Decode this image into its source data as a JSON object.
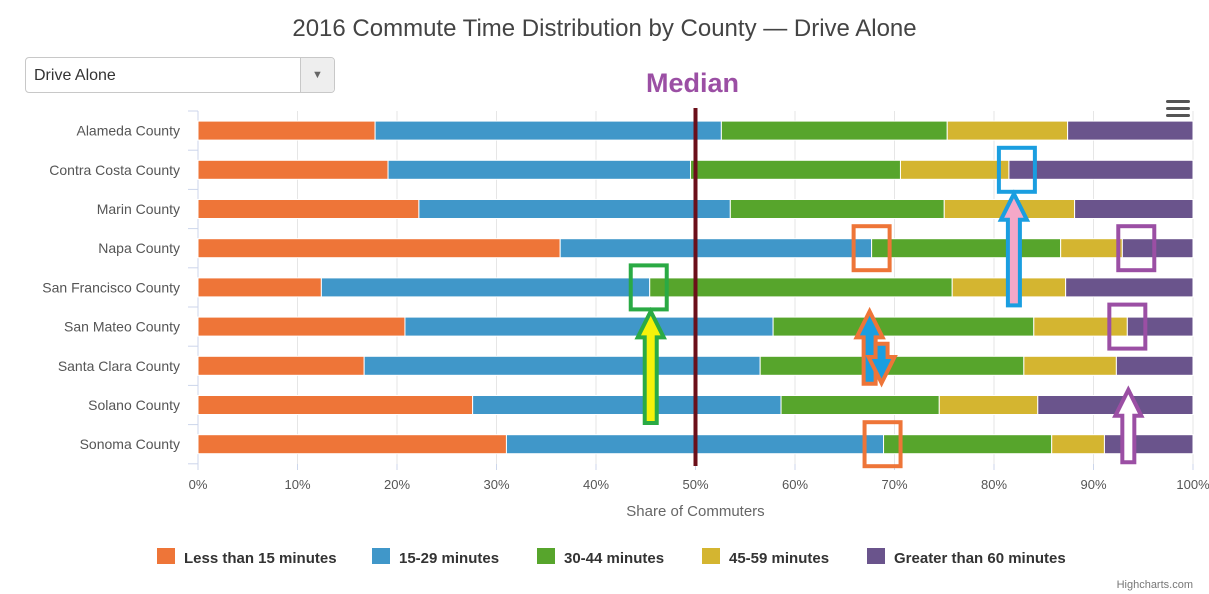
{
  "colors": {
    "lt15": "#ee7538",
    "m15_29": "#4097c9",
    "m30_44": "#57a52c",
    "m45_59": "#d4b530",
    "gt60": "#6a548c",
    "median_line": "#6b0f1a",
    "median_label": "#9b4fa4"
  },
  "select": {
    "value": "Drive Alone"
  },
  "menu": {
    "icon": "hamburger-icon"
  },
  "credits": "Highcharts.com",
  "chart_data": {
    "type": "bar",
    "stacking": "percent",
    "orientation": "horizontal",
    "title": "2016 Commute Time Distribution by County — Drive Alone",
    "xlabel": "Share of Commuters",
    "xlim": [
      0,
      100
    ],
    "ticks": [
      "0%",
      "10%",
      "20%",
      "30%",
      "40%",
      "50%",
      "60%",
      "70%",
      "80%",
      "90%",
      "100%"
    ],
    "grid": true,
    "legend_position": "bottom",
    "categories": [
      "Alameda County",
      "Contra Costa County",
      "Marin County",
      "Napa County",
      "San Francisco County",
      "San Mateo County",
      "Santa Clara County",
      "Solano County",
      "Sonoma County"
    ],
    "series": [
      {
        "name": "Less than 15 minutes",
        "color": "#ee7538",
        "values": [
          17.8,
          19.1,
          22.2,
          36.4,
          12.4,
          20.8,
          16.7,
          27.6,
          31.0
        ]
      },
      {
        "name": "15-29 minutes",
        "color": "#4097c9",
        "values": [
          34.8,
          30.4,
          31.3,
          31.3,
          33.0,
          37.0,
          39.8,
          31.0,
          37.9
        ]
      },
      {
        "name": "30-44 minutes",
        "color": "#57a52c",
        "values": [
          22.7,
          21.1,
          21.5,
          19.0,
          30.4,
          26.2,
          26.5,
          15.9,
          16.9
        ]
      },
      {
        "name": "45-59 minutes",
        "color": "#d4b530",
        "values": [
          12.1,
          10.9,
          13.1,
          6.2,
          11.4,
          9.4,
          9.3,
          9.9,
          5.3
        ]
      },
      {
        "name": "Greater than 60 minutes",
        "color": "#6a548c",
        "values": [
          12.6,
          18.5,
          11.9,
          7.1,
          12.8,
          6.6,
          7.7,
          15.6,
          8.9
        ]
      }
    ],
    "annotations": {
      "median_label": "Median",
      "median_value": 50,
      "boxes": [
        {
          "name": "box-contra-costa-45-59",
          "county": "Contra Costa County",
          "at": 82.3,
          "color": "#1a9ee0"
        },
        {
          "name": "box-napa-15-29",
          "county": "Napa County",
          "at": 67.7,
          "color": "#ee7538"
        },
        {
          "name": "box-napa-45-59",
          "county": "Napa County",
          "at": 94.3,
          "color": "#9b4fa4"
        },
        {
          "name": "box-sf-15-29",
          "county": "San Francisco County",
          "at": 45.3,
          "color": "#2aaa44"
        },
        {
          "name": "box-san-mateo-45-59",
          "county": "San Mateo County",
          "at": 93.4,
          "color": "#9b4fa4"
        },
        {
          "name": "box-sonoma-15-29",
          "county": "Sonoma County",
          "at": 68.8,
          "color": "#ee7538"
        }
      ],
      "arrows": [
        {
          "name": "arrow-up-pink",
          "at": 82.0,
          "from_county": "San Francisco County",
          "to_county": "Contra Costa County",
          "direction": "up",
          "fill": "#f4a8c8",
          "stroke": "#1a9ee0"
        },
        {
          "name": "arrow-up-yellow",
          "at": 45.5,
          "from_county": "Solano County",
          "to_county": "San Francisco County",
          "direction": "up",
          "fill": "#f5f20a",
          "stroke": "#2aaa44"
        },
        {
          "name": "arrow-up-blue",
          "at": 67.5,
          "from_county": "Santa Clara County",
          "to_county": "San Francisco County",
          "direction": "up",
          "fill": "#1a9ee0",
          "stroke": "#ee7538"
        },
        {
          "name": "arrow-down-blue",
          "at": 68.7,
          "from_county": "Santa Clara County",
          "to_county": "Solano County",
          "direction": "down",
          "fill": "#1a9ee0",
          "stroke": "#ee7538"
        },
        {
          "name": "arrow-up-white",
          "at": 93.5,
          "from_county": "Sonoma County",
          "to_county": "Santa Clara County",
          "direction": "up",
          "fill": "#ffffff",
          "stroke": "#9b4fa4"
        }
      ]
    }
  }
}
